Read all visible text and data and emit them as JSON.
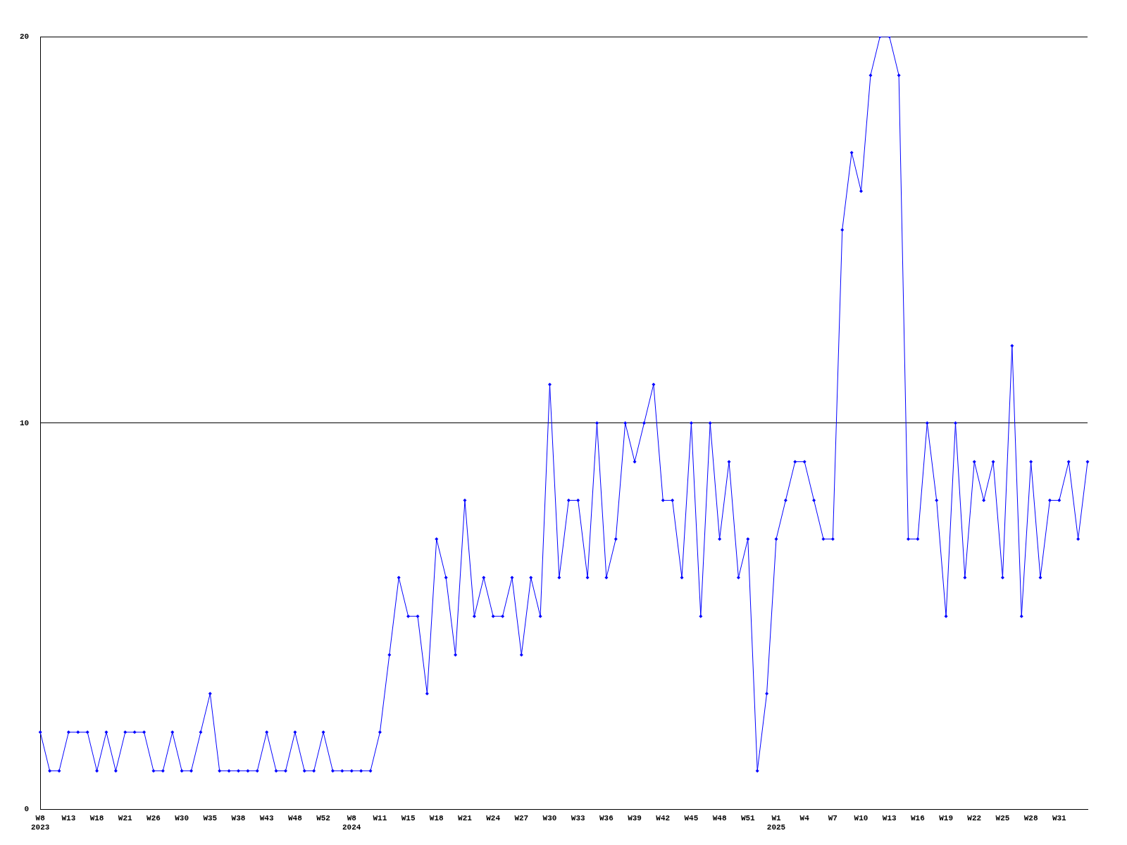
{
  "chart_data": {
    "type": "line",
    "categories": [
      "W8\n2023",
      null,
      null,
      "W13",
      null,
      null,
      "W18",
      null,
      null,
      "W21",
      null,
      null,
      "W26",
      null,
      null,
      "W30",
      null,
      null,
      "W35",
      null,
      null,
      "W38",
      null,
      null,
      "W43",
      null,
      null,
      "W48",
      null,
      null,
      "W52",
      null,
      null,
      "W8\n2024",
      null,
      null,
      "W11",
      null,
      null,
      "W15",
      null,
      null,
      "W18",
      null,
      null,
      "W21",
      null,
      null,
      "W24",
      null,
      null,
      "W27",
      null,
      null,
      "W30",
      null,
      null,
      "W33",
      null,
      null,
      "W36",
      null,
      null,
      "W39",
      null,
      null,
      "W42",
      null,
      null,
      "W45",
      null,
      null,
      "W48",
      null,
      null,
      "W51",
      null,
      null,
      "W1\n2025",
      null,
      null,
      "W4",
      null,
      null,
      "W7",
      null,
      null,
      "W10",
      null,
      null,
      "W13",
      null,
      null,
      "W16",
      null,
      null,
      "W19",
      null,
      null,
      "W22",
      null,
      null,
      "W25",
      null,
      null,
      "W28",
      null,
      null,
      "W31",
      null,
      null,
      null
    ],
    "series": [
      {
        "color": "#0000ff",
        "values": [
          2,
          1,
          1,
          2,
          2,
          2,
          1,
          2,
          1,
          2,
          2,
          2,
          1,
          1,
          2,
          1,
          1,
          2,
          3,
          1,
          1,
          1,
          1,
          1,
          2,
          1,
          1,
          2,
          1,
          1,
          2,
          1,
          1,
          1,
          1,
          1,
          2,
          4,
          6,
          5,
          5,
          3,
          7,
          6,
          4,
          8,
          5,
          6,
          5,
          5,
          6,
          4,
          6,
          5,
          11,
          6,
          8,
          8,
          6,
          10,
          6,
          7,
          10,
          9,
          10,
          11,
          8,
          8,
          6,
          10,
          5,
          10,
          7,
          9,
          6,
          7,
          1,
          3,
          7,
          8,
          9,
          9,
          8,
          7,
          7,
          15,
          17,
          16,
          19,
          20,
          20,
          19,
          7,
          7,
          10,
          8,
          5,
          10,
          6,
          9,
          8,
          9,
          6,
          12,
          5,
          9,
          6,
          8,
          8,
          9,
          7,
          9
        ]
      }
    ],
    "ylim": [
      0,
      20
    ],
    "yticks": [
      0,
      10,
      20
    ],
    "grid": "y",
    "marker": "diamond",
    "line_style": "solid"
  }
}
